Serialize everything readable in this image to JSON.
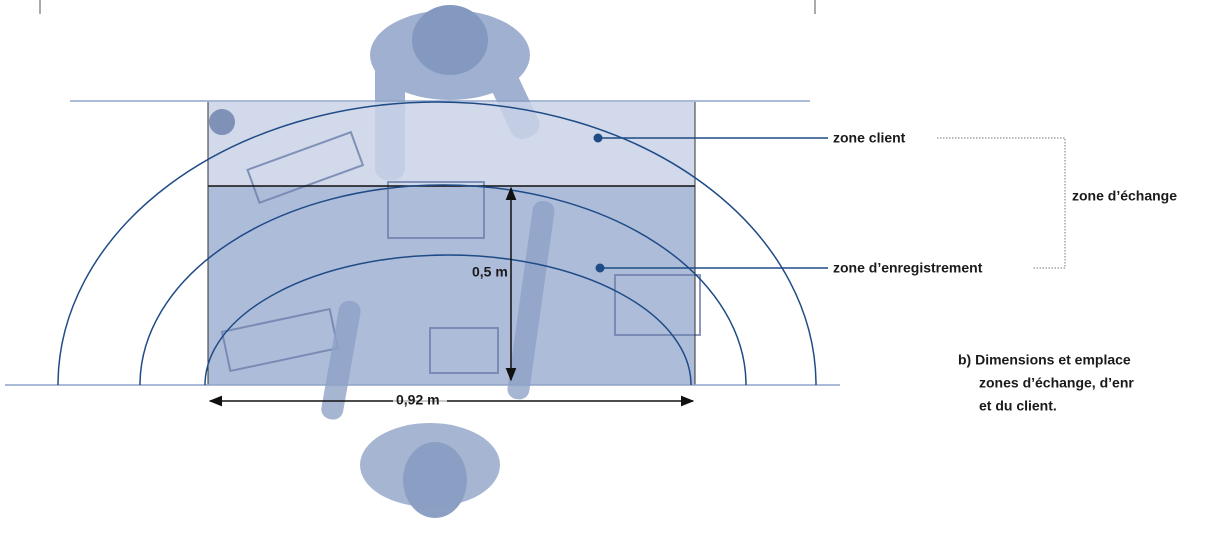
{
  "labels": {
    "zone_client": "zone client",
    "zone_echange": "zone d’échange",
    "zone_enregistrement": "zone d’enregistrement"
  },
  "dimensions": {
    "depth": "0,5 m",
    "width": "0,92 m"
  },
  "caption": [
    "b)  Dimensions et emplace",
    "zones d’échange, d’enr",
    "et du client."
  ]
}
